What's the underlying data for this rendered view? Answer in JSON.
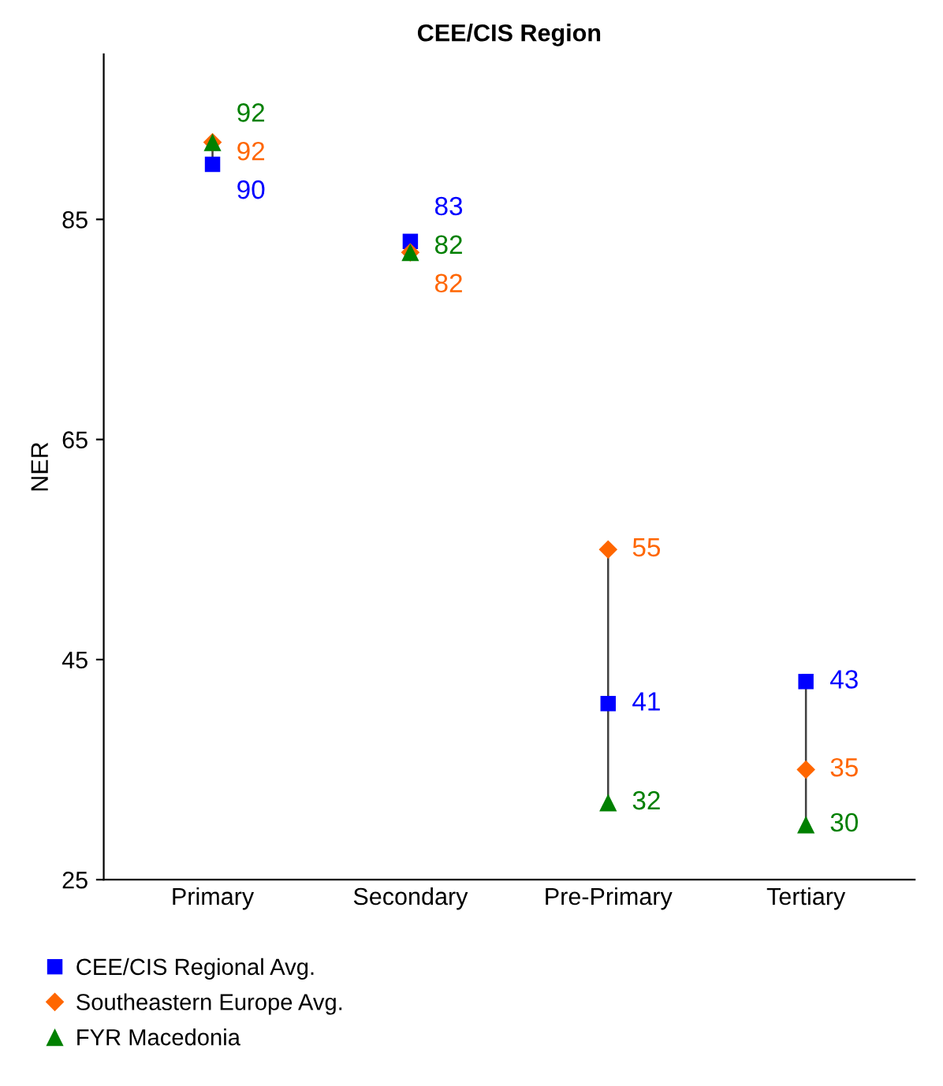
{
  "chart_data": {
    "type": "scatter",
    "title": "CEE/CIS Region",
    "ylabel": "NER",
    "categories": [
      "Primary",
      "Secondary",
      "Pre-Primary",
      "Tertiary"
    ],
    "series": [
      {
        "name": "CEE/CIS Regional Avg.",
        "color": "#0000ff",
        "marker": "square",
        "values": [
          90,
          83,
          41,
          43
        ]
      },
      {
        "name": "Southeastern Europe Avg.",
        "color": "#ff6600",
        "marker": "diamond",
        "values": [
          92,
          82,
          55,
          35
        ]
      },
      {
        "name": "FYR Macedonia",
        "color": "#008000",
        "marker": "triangle",
        "values": [
          92,
          82,
          32,
          30
        ]
      }
    ],
    "ylim": [
      25,
      100
    ],
    "yticks": [
      25,
      45,
      65,
      85
    ],
    "grid": false,
    "legend": "bottom",
    "data_labels": true
  }
}
